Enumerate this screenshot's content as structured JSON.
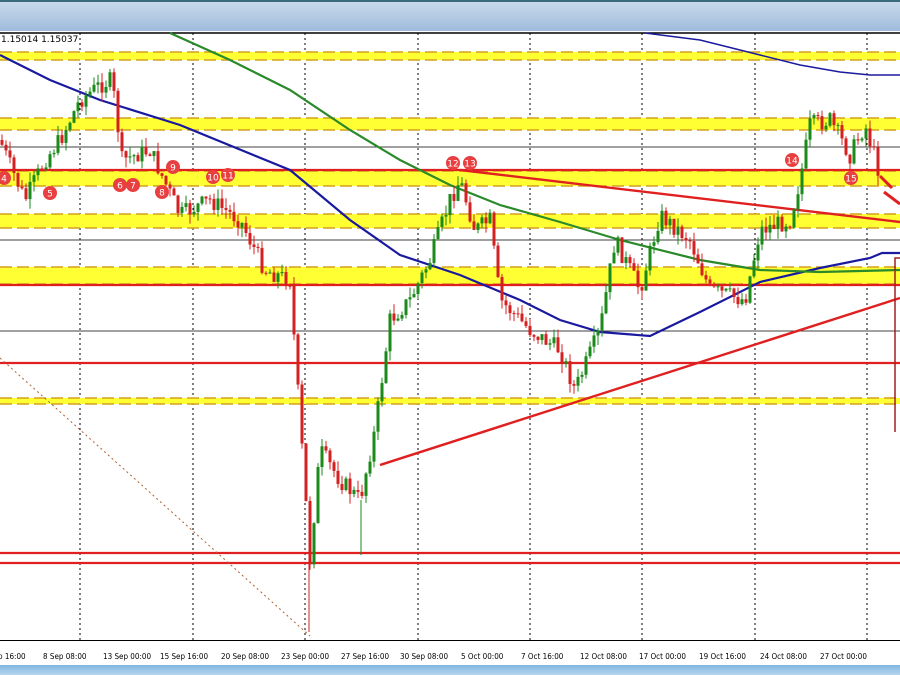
{
  "header": {
    "quote_text": "1.15014 1.15037"
  },
  "chart_data": {
    "type": "candlestick",
    "title": "",
    "x_tick_labels": [
      "p 16:00",
      "8 Sep 08:00",
      "13 Sep 00:00",
      "15 Sep 16:00",
      "20 Sep 08:00",
      "23 Sep 00:00",
      "27 Sep 16:00",
      "30 Sep 08:00",
      "5 Oct 00:00",
      "7 Oct 16:00",
      "12 Oct 08:00",
      "17 Oct 00:00",
      "19 Oct 16:00",
      "24 Oct 08:00",
      "27 Oct 00:00"
    ],
    "annotations": [
      "4",
      "5",
      "6",
      "7",
      "8",
      "9",
      "10",
      "11",
      "12",
      "13",
      "14",
      "15"
    ],
    "grid": true,
    "colors": {
      "bull": "#1a8a1a",
      "bear": "#d42020",
      "ma_blue": "#1a1aa0",
      "ma_green": "#2a8a2a",
      "band": "#ffff33",
      "band_dash": "#d4a020",
      "level": "#e02020"
    }
  }
}
